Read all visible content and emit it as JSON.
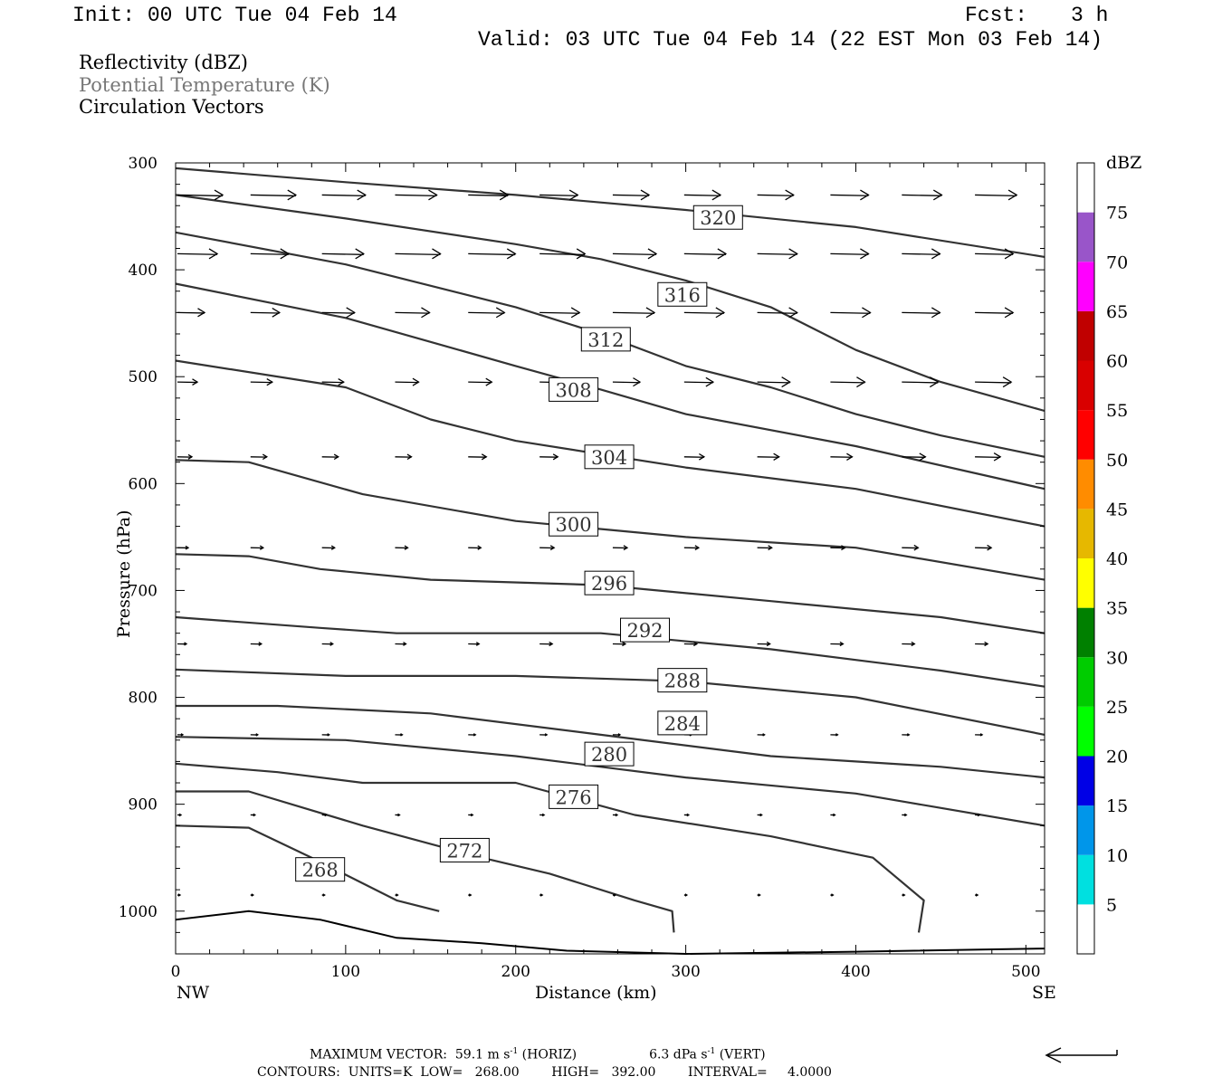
{
  "header": {
    "init": "Init: 00 UTC Tue 04 Feb 14",
    "fcst_label": "Fcst:",
    "fcst_value": "3 h",
    "valid": "Valid: 03 UTC Tue 04 Feb 14 (22 EST Mon 03 Feb 14)"
  },
  "legend": {
    "reflectivity": "Reflectivity (dBZ)",
    "theta": "Potential Temperature (K)",
    "vectors": "Circulation Vectors"
  },
  "footer": {
    "max_vector": "MAXIMUM VECTOR:  59.1 m s",
    "max_vector_exp": "-1",
    "horiz": " (HORIZ)",
    "vert_val": "6.3 dPa s",
    "vert_exp": "-1",
    "vert": " (VERT)",
    "contours": "CONTOURS:  UNITS=K  LOW=   268.00        HIGH=   392.00        INTERVAL=     4.0000"
  },
  "colorbar": {
    "title": "dBZ",
    "levels": [
      5,
      10,
      15,
      20,
      25,
      30,
      35,
      40,
      45,
      50,
      55,
      60,
      65,
      70,
      75
    ],
    "colors": [
      "#00e0e0",
      "#0096ea",
      "#0000e6",
      "#00ff00",
      "#00cc00",
      "#008000",
      "#ffff00",
      "#e6b800",
      "#ff8c00",
      "#ff0000",
      "#d90000",
      "#c00000",
      "#ff00ff",
      "#9955c9",
      "#ffffff"
    ]
  },
  "chart_data": {
    "type": "line",
    "title": "",
    "xlabel": "Distance (km)",
    "ylabel": "Pressure (hPa)",
    "x_ticks": [
      0,
      100,
      200,
      300,
      400,
      500
    ],
    "y_ticks": [
      300,
      400,
      500,
      600,
      700,
      800,
      900,
      1000
    ],
    "xlim": [
      0,
      511
    ],
    "ylim": [
      1040,
      300
    ],
    "x_end_labels": {
      "left": "NW",
      "right": "SE"
    },
    "contour_labels": [
      {
        "label": "320",
        "x": 319,
        "y": 351
      },
      {
        "label": "316",
        "x": 298,
        "y": 423
      },
      {
        "label": "312",
        "x": 253,
        "y": 465
      },
      {
        "label": "308",
        "x": 234,
        "y": 512
      },
      {
        "label": "304",
        "x": 255,
        "y": 575
      },
      {
        "label": "300",
        "x": 234,
        "y": 638
      },
      {
        "label": "296",
        "x": 255,
        "y": 693
      },
      {
        "label": "292",
        "x": 276,
        "y": 737
      },
      {
        "label": "288",
        "x": 298,
        "y": 784
      },
      {
        "label": "284",
        "x": 298,
        "y": 824
      },
      {
        "label": "280",
        "x": 255,
        "y": 853
      },
      {
        "label": "276",
        "x": 234,
        "y": 893
      },
      {
        "label": "272",
        "x": 170,
        "y": 943
      },
      {
        "label": "268",
        "x": 85,
        "y": 961
      }
    ],
    "series": [
      {
        "theta": 320,
        "points": [
          [
            0,
            305
          ],
          [
            100,
            318
          ],
          [
            200,
            330
          ],
          [
            300,
            344
          ],
          [
            400,
            360
          ],
          [
            511,
            388
          ]
        ]
      },
      {
        "theta": 316,
        "points": [
          [
            0,
            330
          ],
          [
            100,
            352
          ],
          [
            200,
            376
          ],
          [
            250,
            390
          ],
          [
            300,
            410
          ],
          [
            350,
            435
          ],
          [
            400,
            475
          ],
          [
            450,
            505
          ],
          [
            511,
            532
          ]
        ]
      },
      {
        "theta": 312,
        "points": [
          [
            0,
            365
          ],
          [
            100,
            395
          ],
          [
            200,
            435
          ],
          [
            250,
            460
          ],
          [
            300,
            490
          ],
          [
            350,
            510
          ],
          [
            400,
            535
          ],
          [
            450,
            555
          ],
          [
            511,
            575
          ]
        ]
      },
      {
        "theta": 308,
        "points": [
          [
            0,
            413
          ],
          [
            100,
            445
          ],
          [
            200,
            490
          ],
          [
            250,
            512
          ],
          [
            300,
            535
          ],
          [
            400,
            565
          ],
          [
            511,
            605
          ]
        ]
      },
      {
        "theta": 304,
        "points": [
          [
            0,
            485
          ],
          [
            100,
            510
          ],
          [
            150,
            540
          ],
          [
            200,
            560
          ],
          [
            300,
            585
          ],
          [
            400,
            605
          ],
          [
            511,
            640
          ]
        ]
      },
      {
        "theta": 300,
        "points": [
          [
            0,
            578
          ],
          [
            43,
            580
          ],
          [
            110,
            610
          ],
          [
            200,
            635
          ],
          [
            300,
            650
          ],
          [
            400,
            660
          ],
          [
            511,
            690
          ]
        ]
      },
      {
        "theta": 296,
        "points": [
          [
            0,
            666
          ],
          [
            43,
            668
          ],
          [
            85,
            680
          ],
          [
            150,
            690
          ],
          [
            250,
            695
          ],
          [
            350,
            710
          ],
          [
            450,
            725
          ],
          [
            511,
            740
          ]
        ]
      },
      {
        "theta": 292,
        "points": [
          [
            0,
            725
          ],
          [
            85,
            735
          ],
          [
            130,
            740
          ],
          [
            250,
            740
          ],
          [
            350,
            755
          ],
          [
            450,
            775
          ],
          [
            511,
            790
          ]
        ]
      },
      {
        "theta": 288,
        "points": [
          [
            0,
            774
          ],
          [
            100,
            780
          ],
          [
            200,
            780
          ],
          [
            300,
            785
          ],
          [
            400,
            800
          ],
          [
            511,
            835
          ]
        ]
      },
      {
        "theta": 284,
        "points": [
          [
            0,
            808
          ],
          [
            60,
            808
          ],
          [
            150,
            815
          ],
          [
            250,
            835
          ],
          [
            350,
            855
          ],
          [
            450,
            865
          ],
          [
            511,
            875
          ]
        ]
      },
      {
        "theta": 280,
        "points": [
          [
            0,
            837
          ],
          [
            100,
            840
          ],
          [
            200,
            855
          ],
          [
            300,
            875
          ],
          [
            400,
            890
          ],
          [
            511,
            920
          ]
        ]
      },
      {
        "theta": 276,
        "points": [
          [
            0,
            862
          ],
          [
            60,
            870
          ],
          [
            110,
            880
          ],
          [
            200,
            880
          ],
          [
            270,
            910
          ],
          [
            350,
            930
          ],
          [
            410,
            950
          ],
          [
            440,
            990
          ],
          [
            437,
            1020
          ]
        ]
      },
      {
        "theta": 272,
        "points": [
          [
            0,
            888
          ],
          [
            43,
            888
          ],
          [
            110,
            920
          ],
          [
            180,
            950
          ],
          [
            220,
            965
          ],
          [
            270,
            990
          ],
          [
            292,
            1000
          ],
          [
            293,
            1020
          ]
        ]
      },
      {
        "theta": 268,
        "points": [
          [
            0,
            920
          ],
          [
            43,
            922
          ],
          [
            80,
            950
          ],
          [
            130,
            990
          ],
          [
            155,
            1000
          ]
        ]
      }
    ],
    "surface": [
      [
        0,
        1008
      ],
      [
        43,
        1000
      ],
      [
        85,
        1008
      ],
      [
        130,
        1025
      ],
      [
        180,
        1030
      ],
      [
        230,
        1037
      ],
      [
        300,
        1040
      ],
      [
        400,
        1038
      ],
      [
        511,
        1035
      ]
    ],
    "vectors": [
      {
        "p": 330,
        "x": [
          0,
          43,
          85,
          128,
          171,
          213,
          256,
          298,
          341,
          384,
          426,
          469
        ],
        "len": [
          50,
          50,
          48,
          46,
          44,
          42,
          40,
          40,
          40,
          42,
          44,
          46
        ]
      },
      {
        "p": 385,
        "x": [
          0,
          43,
          85,
          128,
          171,
          213,
          256,
          298,
          341,
          384,
          426,
          469
        ],
        "len": [
          44,
          42,
          46,
          50,
          52,
          50,
          48,
          46,
          44,
          42,
          42,
          42
        ]
      },
      {
        "p": 440,
        "x": [
          0,
          43,
          85,
          128,
          171,
          213,
          256,
          298,
          341,
          384,
          426,
          469
        ],
        "len": [
          30,
          32,
          36,
          38,
          40,
          44,
          46,
          44,
          44,
          44,
          42,
          42
        ]
      },
      {
        "p": 505,
        "x": [
          0,
          43,
          85,
          128,
          171,
          213,
          256,
          298,
          341,
          384,
          426,
          469
        ],
        "len": [
          22,
          24,
          24,
          26,
          26,
          28,
          30,
          32,
          36,
          38,
          40,
          40
        ]
      },
      {
        "p": 575,
        "x": [
          0,
          43,
          85,
          128,
          171,
          213,
          256,
          298,
          341,
          384,
          426,
          469
        ],
        "len": [
          16,
          18,
          18,
          18,
          20,
          20,
          22,
          22,
          24,
          24,
          26,
          28
        ]
      },
      {
        "p": 660,
        "x": [
          0,
          43,
          85,
          128,
          171,
          213,
          256,
          298,
          341,
          384,
          426,
          469
        ],
        "len": [
          12,
          14,
          14,
          14,
          14,
          16,
          16,
          16,
          16,
          16,
          18,
          18
        ]
      },
      {
        "p": 750,
        "x": [
          0,
          43,
          85,
          128,
          171,
          213,
          256,
          298,
          341,
          384,
          426,
          469
        ],
        "len": [
          10,
          12,
          12,
          12,
          12,
          14,
          14,
          14,
          14,
          14,
          14,
          14
        ]
      },
      {
        "p": 835,
        "x": [
          0,
          43,
          85,
          128,
          171,
          213,
          256,
          298,
          341,
          384,
          426,
          469
        ],
        "len": [
          6,
          8,
          8,
          8,
          8,
          8,
          8,
          8,
          8,
          8,
          8,
          8
        ]
      },
      {
        "p": 910,
        "x": [
          0,
          43,
          85,
          128,
          171,
          213,
          256,
          298,
          341,
          384,
          426,
          469
        ],
        "len": [
          4,
          5,
          5,
          5,
          5,
          5,
          5,
          5,
          5,
          5,
          5,
          5
        ]
      },
      {
        "p": 985,
        "x": [
          0,
          43,
          85,
          128,
          171,
          213,
          256,
          298,
          341,
          384,
          426,
          469
        ],
        "len": [
          3,
          3,
          3,
          3,
          3,
          3,
          3,
          3,
          3,
          3,
          3,
          3
        ]
      }
    ]
  }
}
